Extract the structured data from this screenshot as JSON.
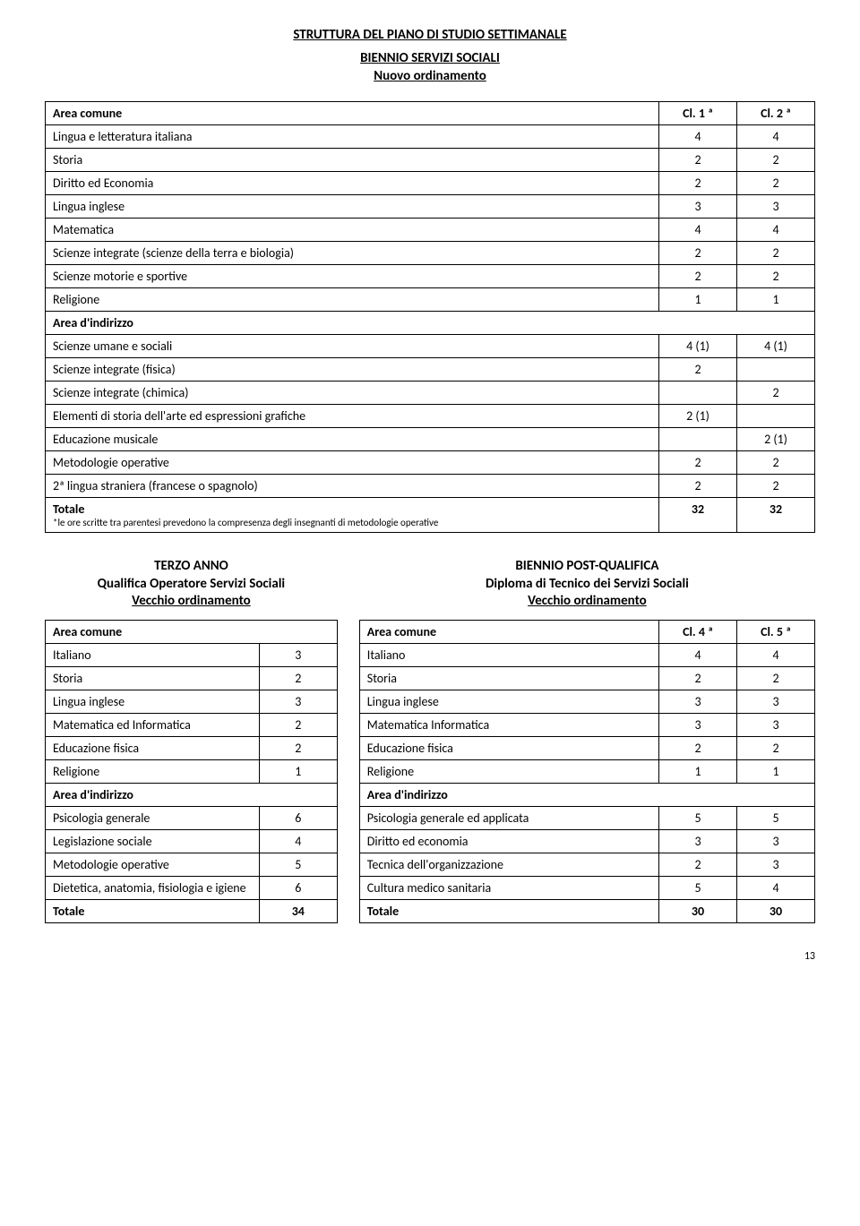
{
  "title_main": "STRUTTURA DEL PIANO DI STUDIO SETTIMANALE",
  "subtitle1": "BIENNIO SERVIZI SOCIALI",
  "subtitle2": "Nuovo ordinamento",
  "main_table": {
    "header": {
      "label": "Area comune",
      "c1": "Cl. 1 ª",
      "c2": "Cl. 2 ª"
    },
    "common_rows": [
      {
        "label": "Lingua e letteratura italiana",
        "c1": "4",
        "c2": "4"
      },
      {
        "label": "Storia",
        "c1": "2",
        "c2": "2"
      },
      {
        "label": "Diritto ed Economia",
        "c1": "2",
        "c2": "2"
      },
      {
        "label": "Lingua inglese",
        "c1": "3",
        "c2": "3"
      },
      {
        "label": "Matematica",
        "c1": "4",
        "c2": "4"
      },
      {
        "label": "Scienze integrate (scienze della terra e biologia)",
        "c1": "2",
        "c2": "2"
      },
      {
        "label": "Scienze motorie e sportive",
        "c1": "2",
        "c2": "2"
      },
      {
        "label": "Religione",
        "c1": "1",
        "c2": "1"
      }
    ],
    "section2_label": "Area d'indirizzo",
    "indirizzo_rows": [
      {
        "label": "Scienze umane e sociali",
        "c1": "4 (1)",
        "c2": "4 (1)"
      },
      {
        "label": "Scienze integrate (fisica)",
        "c1": "2",
        "c2": ""
      },
      {
        "label": "Scienze integrate (chimica)",
        "c1": "",
        "c2": "2"
      },
      {
        "label": "Elementi di storia dell'arte ed espressioni grafiche",
        "c1": "2 (1)",
        "c2": ""
      },
      {
        "label": "Educazione musicale",
        "c1": "",
        "c2": "2 (1)"
      },
      {
        "label": "Metodologie operative",
        "c1": "2",
        "c2": "2"
      },
      {
        "label": "2ª lingua straniera (francese o spagnolo)",
        "c1": "2",
        "c2": "2"
      }
    ],
    "total": {
      "label": "Totale",
      "c1": "32",
      "c2": "32"
    },
    "footnote": "*le ore scritte tra parentesi prevedono la compresenza degli insegnanti di metodologie operative"
  },
  "left_block": {
    "title_l1": "TERZO ANNO",
    "title_l2": "Qualifica Operatore Servizi Sociali",
    "title_l3": "Vecchio ordinamento",
    "header": "Area comune",
    "common_rows": [
      {
        "label": "Italiano",
        "c1": "3"
      },
      {
        "label": "Storia",
        "c1": "2"
      },
      {
        "label": "Lingua inglese",
        "c1": "3"
      },
      {
        "label": "Matematica ed Informatica",
        "c1": "2"
      },
      {
        "label": "Educazione fisica",
        "c1": "2"
      },
      {
        "label": "Religione",
        "c1": "1"
      }
    ],
    "section2_label": "Area d'indirizzo",
    "indirizzo_rows": [
      {
        "label": "Psicologia generale",
        "c1": "6"
      },
      {
        "label": "Legislazione sociale",
        "c1": "4"
      },
      {
        "label": "Metodologie operative",
        "c1": "5"
      },
      {
        "label": "Dietetica, anatomia, fisiologia e igiene",
        "c1": "6"
      }
    ],
    "total": {
      "label": "Totale",
      "c1": "34"
    }
  },
  "right_block": {
    "title_l1": "BIENNIO POST-QUALIFICA",
    "title_l2": "Diploma di Tecnico dei Servizi Sociali",
    "title_l3": "Vecchio ordinamento",
    "header": {
      "label": "Area comune",
      "c1": "Cl. 4 ª",
      "c2": "Cl. 5 ª"
    },
    "common_rows": [
      {
        "label": "Italiano",
        "c1": "4",
        "c2": "4"
      },
      {
        "label": "Storia",
        "c1": "2",
        "c2": "2"
      },
      {
        "label": "Lingua inglese",
        "c1": "3",
        "c2": "3"
      },
      {
        "label": "Matematica Informatica",
        "c1": "3",
        "c2": "3"
      },
      {
        "label": "Educazione fisica",
        "c1": "2",
        "c2": "2"
      },
      {
        "label": "Religione",
        "c1": "1",
        "c2": "1"
      }
    ],
    "section2_label": "Area d'indirizzo",
    "indirizzo_rows": [
      {
        "label": "Psicologia generale ed applicata",
        "c1": "5",
        "c2": "5"
      },
      {
        "label": "Diritto ed economia",
        "c1": "3",
        "c2": "3"
      },
      {
        "label": "Tecnica dell'organizzazione",
        "c1": "2",
        "c2": "3"
      },
      {
        "label": "Cultura medico sanitaria",
        "c1": "5",
        "c2": "4"
      }
    ],
    "total": {
      "label": "Totale",
      "c1": "30",
      "c2": "30"
    }
  },
  "page_number": "13"
}
